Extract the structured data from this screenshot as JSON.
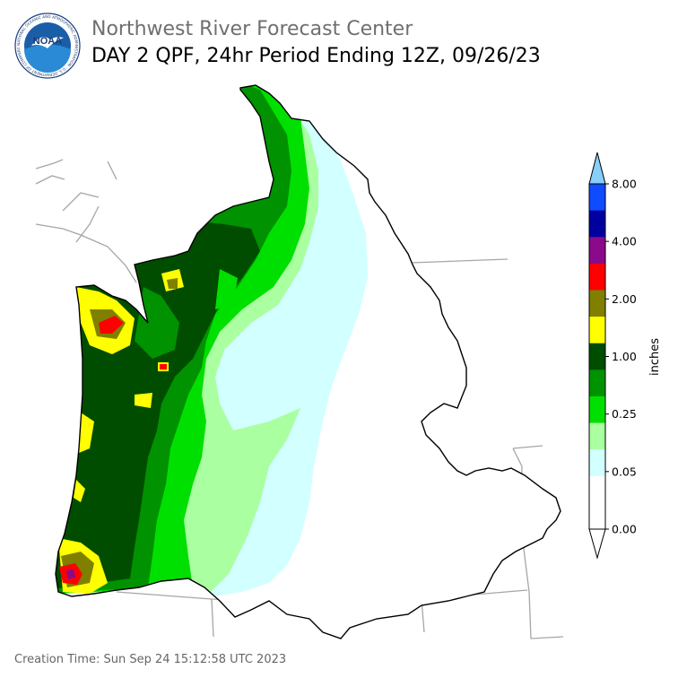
{
  "header": {
    "title": "Northwest River Forecast Center",
    "subtitle": "DAY 2 QPF, 24hr Period Ending 12Z, 09/26/23"
  },
  "logo": {
    "text": "NOAA",
    "ring_text": "NATIONAL OCEANIC AND ATMOSPHERIC ADMINISTRATION · U.S. DEPARTMENT OF COMMERCE",
    "colors": {
      "ring": "#ffffff",
      "sky": "#1a5ea8",
      "water": "#2b8ad6",
      "gull": "#ffffff"
    }
  },
  "legend": {
    "unit_label": "inches",
    "tick_labels": [
      "8.00",
      "4.00",
      "2.00",
      "1.00",
      "0.25",
      "0.05",
      "0.00"
    ],
    "bins_top_to_bottom": [
      {
        "color": "#87cefa"
      },
      {
        "color": "#0f4bff"
      },
      {
        "color": "#0000a0"
      },
      {
        "color": "#8b0a8b"
      },
      {
        "color": "#ff0000"
      },
      {
        "color": "#808000"
      },
      {
        "color": "#ffff00"
      },
      {
        "color": "#004d00"
      },
      {
        "color": "#009200"
      },
      {
        "color": "#00e000"
      },
      {
        "color": "#aaffa0"
      },
      {
        "color": "#d2ffff"
      },
      {
        "color": "#ffffff"
      },
      {
        "color": "#ffffff"
      }
    ]
  },
  "map": {
    "region": "Northwest River Forecast Center basin",
    "colors": {
      "outline": "#000000",
      "state_lines": "#a6a6a6",
      "c_005": "#d2ffff",
      "c_010": "#aaffa0",
      "c_025": "#00e000",
      "c_050": "#009200",
      "c_100": "#004d00",
      "c_150": "#ffff00",
      "c_175": "#808000",
      "c_200": "#ff0000",
      "c_400": "#8b0a8b"
    }
  },
  "footer": {
    "creation_time": "Creation Time: Sun Sep 24 15:12:58 UTC 2023"
  }
}
